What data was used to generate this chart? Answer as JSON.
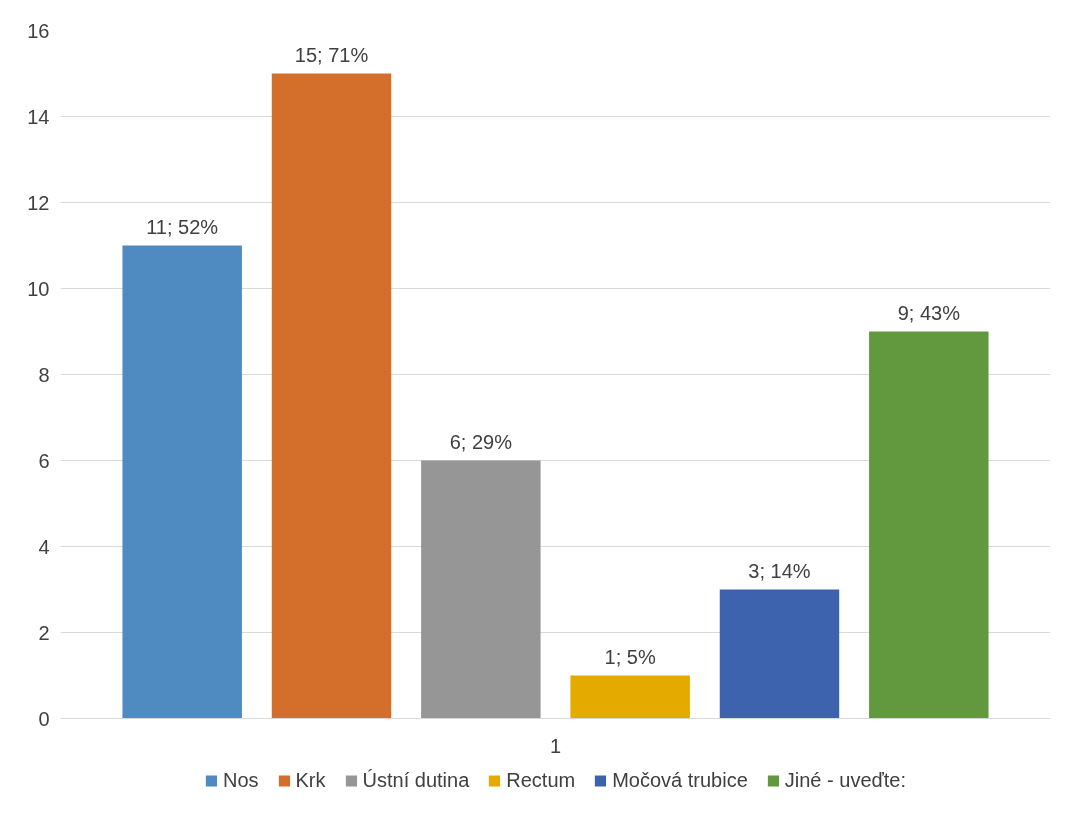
{
  "chart_data": {
    "type": "bar",
    "categories": [
      "1"
    ],
    "series": [
      {
        "name": "Nos",
        "color": "#4f8bc0",
        "values": [
          11
        ],
        "value_labels": [
          "11; 52%"
        ]
      },
      {
        "name": "Krk",
        "color": "#d46f2b",
        "values": [
          15
        ],
        "value_labels": [
          "15; 71%"
        ]
      },
      {
        "name": "Ústní dutina",
        "color": "#969696",
        "values": [
          6
        ],
        "value_labels": [
          "6; 29%"
        ]
      },
      {
        "name": "Rectum",
        "color": "#e4aa00",
        "values": [
          1
        ],
        "value_labels": [
          "1; 5%"
        ]
      },
      {
        "name": "Močová trubice",
        "color": "#3e63ae",
        "values": [
          3
        ],
        "value_labels": [
          "3; 14%"
        ]
      },
      {
        "name": "Jiné - uveďte:",
        "color": "#63993e",
        "values": [
          9
        ],
        "value_labels": [
          "9; 43%"
        ]
      }
    ],
    "ylim": [
      0,
      16
    ],
    "yticks": [
      0,
      2,
      4,
      6,
      8,
      10,
      12,
      14,
      16
    ],
    "grid": "y",
    "legend": "bottom"
  }
}
